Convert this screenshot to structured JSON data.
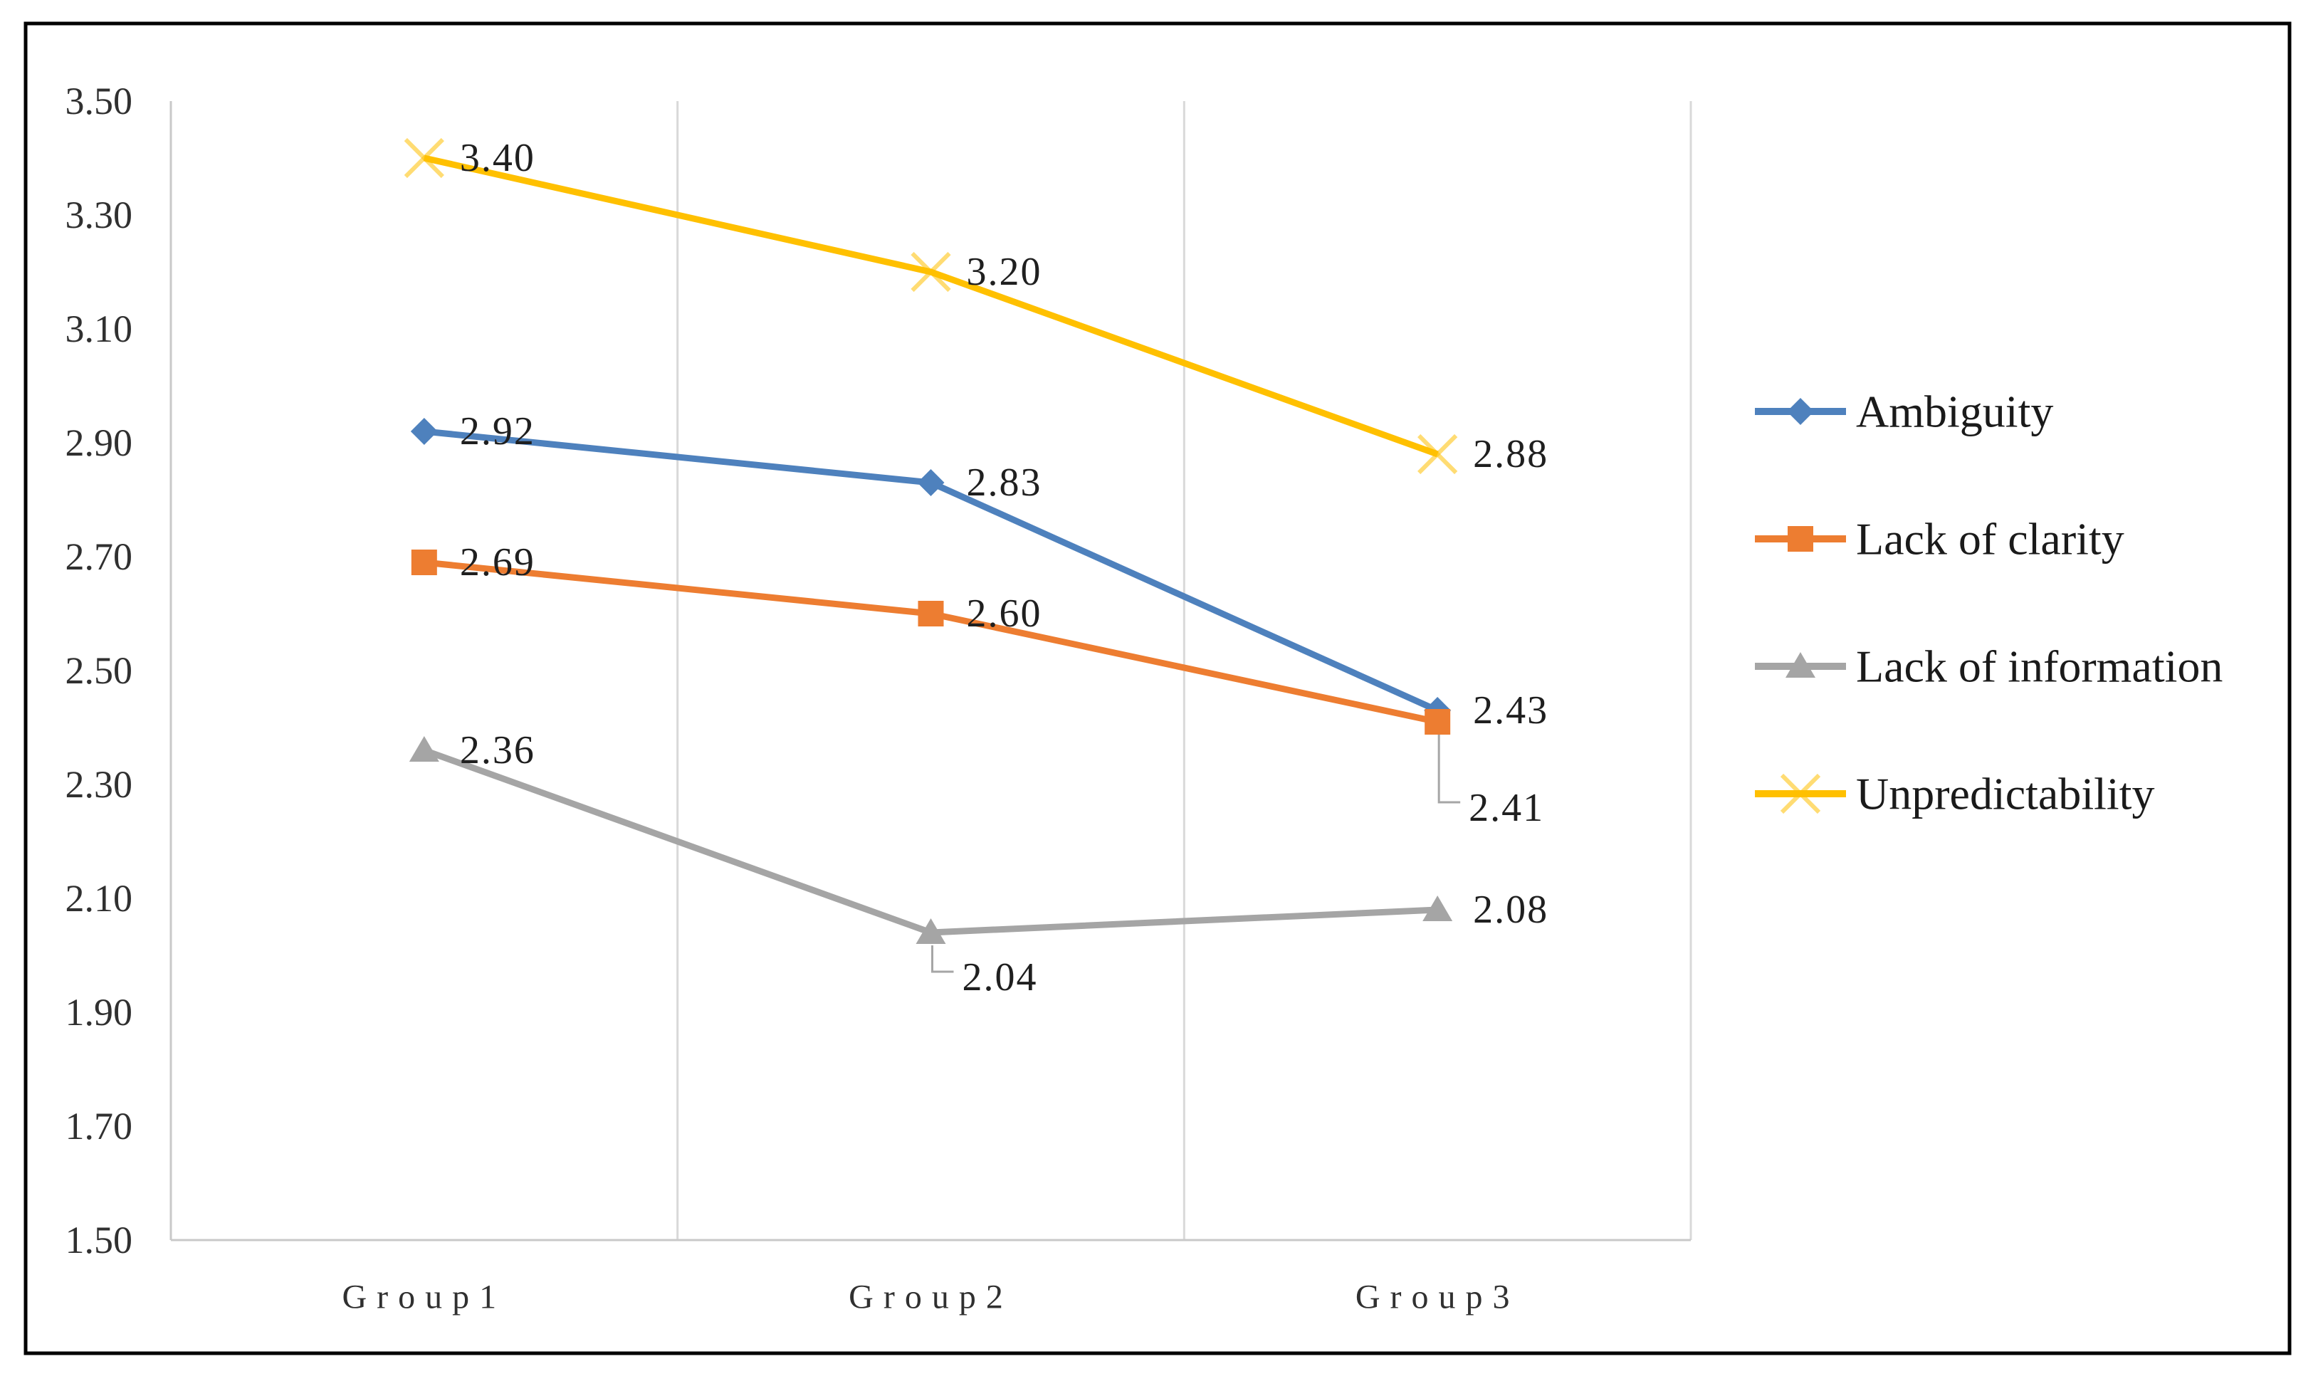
{
  "figure": {
    "background": "#ffffff",
    "border_color": "#000000",
    "grid_color": "#d9d9d9",
    "axis_color": "#c9c9c9",
    "leader_color": "#a6a6a6",
    "text_color": "#1f1f1f"
  },
  "chart_data": {
    "type": "line",
    "categories": [
      "Group1",
      "Group2",
      "Group3"
    ],
    "series": [
      {
        "name": "Ambiguity",
        "color": "#4e81bd",
        "marker": "diamond",
        "values": [
          2.92,
          2.83,
          2.43
        ],
        "labels": [
          "2.92",
          "2.83",
          "2.43"
        ],
        "label_layout": [
          {
            "pos": "right"
          },
          {
            "pos": "right"
          },
          {
            "pos": "right"
          }
        ]
      },
      {
        "name": "Lack of clarity",
        "color": "#ed7d31",
        "marker": "square",
        "values": [
          2.69,
          2.6,
          2.41
        ],
        "labels": [
          "2.69",
          "2.60",
          "2.41"
        ],
        "label_layout": [
          {
            "pos": "right"
          },
          {
            "pos": "right"
          },
          {
            "pos": "leader",
            "drop": 113,
            "foot": 30
          }
        ]
      },
      {
        "name": "Lack of information",
        "color": "#a5a5a5",
        "marker": "triangle",
        "values": [
          2.36,
          2.04,
          2.08
        ],
        "labels": [
          "2.36",
          "2.04",
          "2.08"
        ],
        "label_layout": [
          {
            "pos": "right"
          },
          {
            "pos": "leader",
            "drop": 55,
            "foot": 30
          },
          {
            "pos": "right"
          }
        ]
      },
      {
        "name": "Unpredictability",
        "color": "#ffc000",
        "marker": "x",
        "values": [
          3.4,
          3.2,
          2.88
        ],
        "labels": [
          "3.40",
          "3.20",
          "2.88"
        ],
        "label_layout": [
          {
            "pos": "right"
          },
          {
            "pos": "right"
          },
          {
            "pos": "right"
          }
        ]
      }
    ],
    "ylim": [
      1.5,
      3.5
    ],
    "ytick_step": 0.2,
    "ytick_labels": [
      "1.50",
      "1.70",
      "1.90",
      "2.10",
      "2.30",
      "2.50",
      "2.70",
      "2.90",
      "3.10",
      "3.30",
      "3.50"
    ],
    "xlabel": "",
    "ylabel": "",
    "title": "",
    "grid": "vertical-between-categories",
    "legend_position": "right"
  }
}
